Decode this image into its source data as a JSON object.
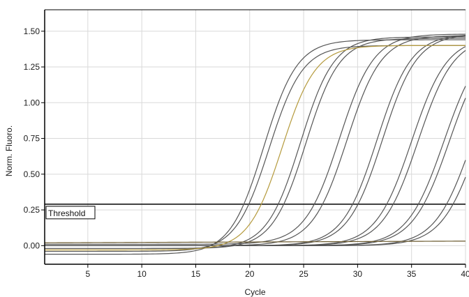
{
  "chart_data": {
    "type": "line",
    "title": "",
    "xlabel": "Cycle",
    "ylabel": "Norm. Fluoro.",
    "xlim": [
      1,
      40
    ],
    "ylim": [
      -0.13,
      1.65
    ],
    "x_ticks": [
      5,
      10,
      15,
      20,
      25,
      30,
      35,
      40
    ],
    "y_ticks": [
      0.0,
      0.25,
      0.5,
      0.75,
      1.0,
      1.25,
      1.5
    ],
    "y_tick_labels": [
      "0.00",
      "0.25",
      "0.50",
      "0.75",
      "1.00",
      "1.25",
      "1.50"
    ],
    "grid": true,
    "threshold": {
      "label": "Threshold",
      "value": 0.29
    },
    "series_colors": {
      "curve": "#555555",
      "flat": "#6b5a2e",
      "highlight": "#b59a3c",
      "axis": "#000000",
      "grid": "#d9d9d9"
    },
    "series": [
      {
        "baseline": -0.06,
        "plateau": 1.44,
        "midpoint": 21.3,
        "slope": 1.55
      },
      {
        "baseline": -0.04,
        "plateau": 1.4,
        "midpoint": 21.8,
        "slope": 1.55
      },
      {
        "baseline": -0.02,
        "plateau": 1.46,
        "midpoint": 24.7,
        "slope": 1.55
      },
      {
        "baseline": -0.02,
        "plateau": 1.45,
        "midpoint": 25.2,
        "slope": 1.55
      },
      {
        "baseline": 0.01,
        "plateau": 1.48,
        "midpoint": 28.3,
        "slope": 1.6
      },
      {
        "baseline": 0.0,
        "plateau": 1.47,
        "midpoint": 29.0,
        "slope": 1.6
      },
      {
        "baseline": 0.0,
        "plateau": 1.48,
        "midpoint": 31.8,
        "slope": 1.6
      },
      {
        "baseline": 0.0,
        "plateau": 1.48,
        "midpoint": 32.3,
        "slope": 1.6
      },
      {
        "baseline": 0.0,
        "plateau": 1.46,
        "midpoint": 35.0,
        "slope": 1.65
      },
      {
        "baseline": 0.0,
        "plateau": 1.46,
        "midpoint": 35.6,
        "slope": 1.65
      },
      {
        "baseline": 0.0,
        "plateau": 1.46,
        "midpoint": 38.0,
        "slope": 1.7
      },
      {
        "baseline": 0.0,
        "plateau": 1.46,
        "midpoint": 38.5,
        "slope": 1.7
      },
      {
        "baseline": 0.0,
        "plateau": 1.45,
        "midpoint": 40.6,
        "slope": 1.7
      },
      {
        "baseline": 0.0,
        "plateau": 1.45,
        "midpoint": 41.2,
        "slope": 1.7
      },
      {
        "baseline": -0.03,
        "plateau": 1.4,
        "midpoint": 23.0,
        "slope": 1.55,
        "color_key": "highlight"
      },
      {
        "baseline": 0.02,
        "plateau": 0.0,
        "midpoint": 30.0,
        "slope": 2.0,
        "color_key": "flat"
      }
    ]
  }
}
